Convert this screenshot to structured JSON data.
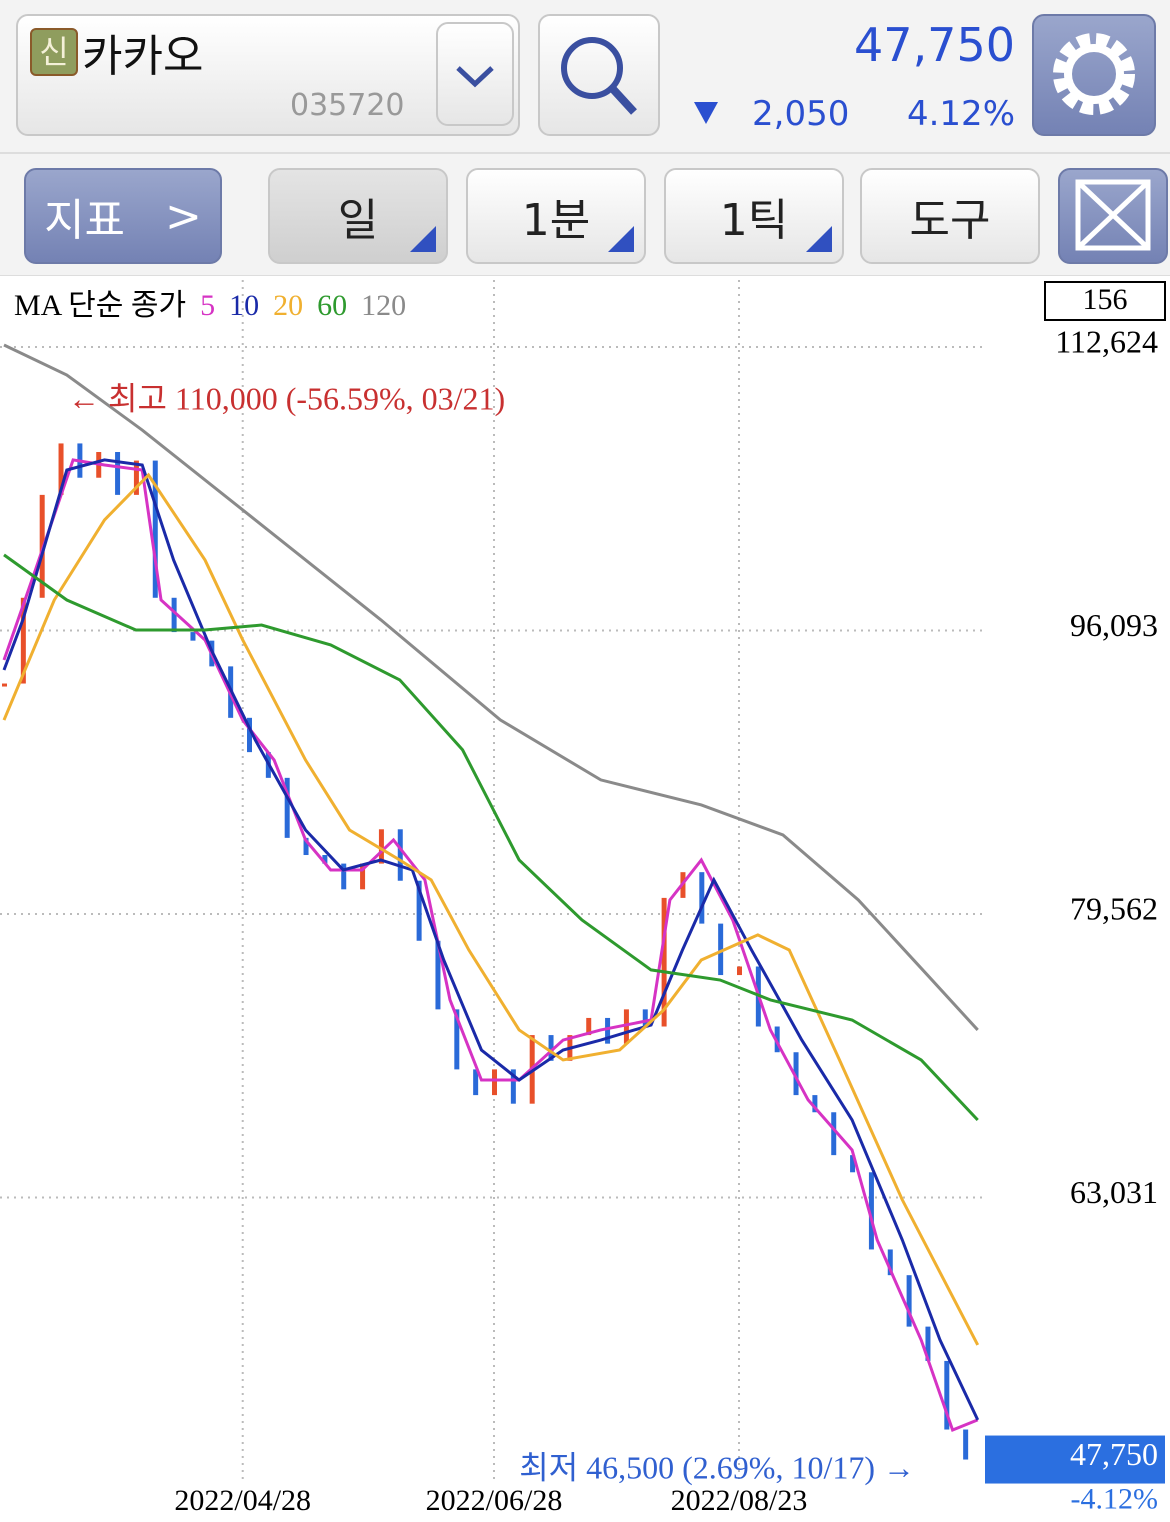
{
  "header": {
    "badge": "신",
    "name": "카카오",
    "code": "035720",
    "price": "47,750",
    "change": "2,050",
    "change_pct": "4.12%"
  },
  "toolbar": {
    "indicator": "지표",
    "period": "일",
    "minute": "1분",
    "tick": "1틱",
    "tools": "도구"
  },
  "chart_data": {
    "type": "stock",
    "legend_title": "MA 단순 종가",
    "count": "156",
    "xlim": [
      0,
      156
    ],
    "ylim": [
      46440,
      116530
    ],
    "xticks": [
      {
        "value": 38,
        "label": "2022/04/28"
      },
      {
        "value": 78,
        "label": "2022/06/28"
      },
      {
        "value": 117,
        "label": "2022/08/23"
      }
    ],
    "yticks": [
      {
        "value": 112624,
        "label": "112,624"
      },
      {
        "value": 96093,
        "label": "96,093"
      },
      {
        "value": 79562,
        "label": "79,562"
      },
      {
        "value": 63031,
        "label": "63,031"
      }
    ],
    "grid": true,
    "candles": {
      "up_color": "#e8502a",
      "down_color": "#2a6ad8",
      "x": [
        0,
        3,
        6,
        9,
        12,
        15,
        18,
        21,
        24,
        27,
        30,
        33,
        36,
        39,
        42,
        45,
        48,
        51,
        54,
        57,
        60,
        63,
        66,
        69,
        72,
        75,
        78,
        81,
        84,
        87,
        90,
        93,
        96,
        99,
        102,
        105,
        108,
        111,
        114,
        117,
        120,
        123,
        126,
        129,
        132,
        135,
        138,
        141,
        144,
        147,
        150,
        153
      ],
      "values": [
        93000,
        98000,
        104000,
        107000,
        105000,
        106500,
        104000,
        106000,
        98000,
        96000,
        95500,
        94000,
        91000,
        89000,
        87500,
        84000,
        83000,
        82500,
        81000,
        82500,
        84500,
        81500,
        78000,
        74000,
        70500,
        69000,
        70500,
        68500,
        72500,
        71000,
        72500,
        73500,
        72000,
        74000,
        73000,
        80500,
        82000,
        79000,
        76000,
        76500,
        73000,
        71500,
        69000,
        68000,
        65500,
        64500,
        60000,
        58500,
        55500,
        53500,
        49500,
        47750
      ]
    },
    "series": [
      {
        "name": "5",
        "color": "#d633c4",
        "x": [
          0,
          5,
          11,
          16,
          22,
          25,
          32,
          38,
          43,
          48,
          52,
          57,
          62,
          67,
          71,
          76,
          82,
          89,
          95,
          103,
          106,
          111,
          116,
          122,
          128,
          135,
          139,
          146,
          151,
          155
        ],
        "values": [
          94370,
          99620,
          106040,
          105740,
          105450,
          97870,
          95540,
          90870,
          88540,
          83880,
          82130,
          82130,
          83880,
          81550,
          74550,
          69880,
          69880,
          72210,
          72800,
          73380,
          80380,
          82710,
          79210,
          72800,
          68720,
          65800,
          60550,
          54720,
          49470,
          50060
        ]
      },
      {
        "name": "10",
        "color": "#1a2aa8",
        "x": [
          0,
          3,
          10,
          16,
          22,
          27,
          33,
          40,
          48,
          54,
          60,
          65,
          70,
          76,
          82,
          89,
          95,
          103,
          108,
          113,
          119,
          127,
          135,
          143,
          149,
          155
        ],
        "values": [
          93790,
          96710,
          105450,
          106040,
          105740,
          100200,
          94960,
          89710,
          84460,
          82130,
          82710,
          82130,
          76880,
          71630,
          69880,
          71630,
          72210,
          73090,
          77460,
          81550,
          77460,
          72210,
          67550,
          60550,
          54720,
          50060
        ]
      },
      {
        "name": "20",
        "color": "#f0b030",
        "x": [
          0,
          8,
          16,
          23,
          32,
          38,
          48,
          55,
          63,
          68,
          74,
          82,
          89,
          98,
          105,
          111,
          120,
          125,
          133,
          143,
          155
        ],
        "values": [
          90870,
          97870,
          102540,
          105160,
          100200,
          95540,
          88540,
          84460,
          82710,
          81550,
          77460,
          72800,
          71050,
          71630,
          73960,
          76880,
          78340,
          77460,
          71050,
          62890,
          54430
        ]
      },
      {
        "name": "60",
        "color": "#2e9a2e",
        "x": [
          0,
          10,
          21,
          32,
          41,
          52,
          63,
          73,
          82,
          92,
          103,
          114,
          122,
          135,
          146,
          155
        ],
        "values": [
          100500,
          97870,
          96120,
          96120,
          96410,
          95250,
          93210,
          89130,
          82710,
          79210,
          76300,
          75710,
          74550,
          73380,
          71050,
          67550
        ]
      },
      {
        "name": "120",
        "color": "#8a8a8a",
        "x": [
          0,
          10,
          22,
          40,
          60,
          79,
          95,
          111,
          124,
          136,
          147,
          155
        ],
        "values": [
          112740,
          110990,
          107780,
          102540,
          96710,
          90880,
          87380,
          85920,
          84170,
          80380,
          76000,
          72800
        ]
      }
    ],
    "annotations": [
      {
        "text": "← 최고 110,000 (-56.59%, 03/21)",
        "value": 110000,
        "color": "#c83030"
      },
      {
        "text": "최저 46,500 (2.69%, 10/17) →",
        "value": 46500,
        "color": "#3060d0"
      }
    ],
    "last_price": {
      "value": 47750,
      "label": "47,750"
    },
    "last_change": "-4.12%"
  }
}
